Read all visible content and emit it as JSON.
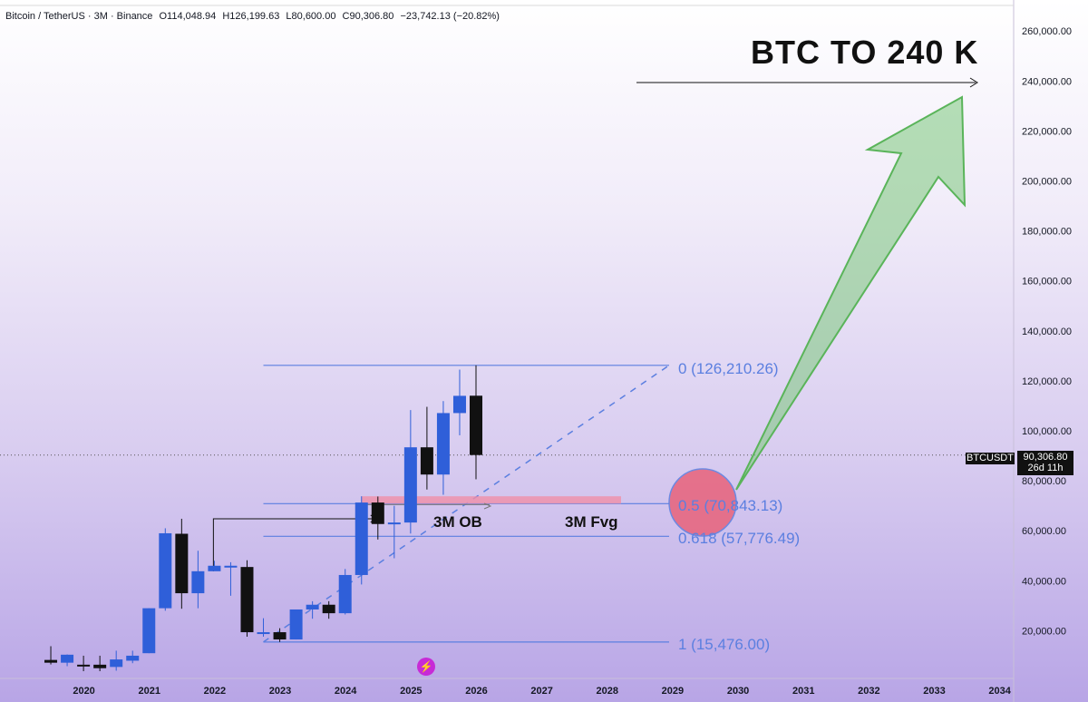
{
  "header": {
    "symbol": "Bitcoin / TetherUS · 3M · Binance",
    "open": "O114,048.94",
    "high": "H126,199.63",
    "low": "L80,600.00",
    "close": "C90,306.80",
    "change": "−23,742.13 (−20.82%)"
  },
  "headline": "BTC TO 240 K",
  "ticker_label": "BTCUSDT",
  "last_price": "90,306.80",
  "countdown": "26d 11h",
  "annotations": {
    "ob": "3M OB",
    "fvg": "3M Fvg"
  },
  "fib_levels": [
    {
      "label": "0 (126,210.26)",
      "price": 126210.26
    },
    {
      "label": "0.5 (70,843.13)",
      "price": 70843.13
    },
    {
      "label": "0.618 (57,776.49)",
      "price": 57776.49
    },
    {
      "label": "1 (15,476.00)",
      "price": 15476.0
    }
  ],
  "colors": {
    "bull": "#2f5fd9",
    "bear": "#111111",
    "fib": "#5b7fe0",
    "arrow": "#7cc97c",
    "zone": "#f08fa8",
    "circle": "#e8627a"
  },
  "logo_icon": "tradingview-bolt-icon",
  "chart_data": {
    "type": "candlestick",
    "timeframe": "3M",
    "y_axis": {
      "min": 0,
      "max": 260000,
      "ticks": [
        "20,000.00",
        "40,000.00",
        "60,000.00",
        "80,000.00",
        "100,000.00",
        "120,000.00",
        "140,000.00",
        "160,000.00",
        "180,000.00",
        "200,000.00",
        "220,000.00",
        "240,000.00",
        "260,000.00"
      ],
      "tick_values": [
        20000,
        40000,
        60000,
        80000,
        100000,
        120000,
        140000,
        160000,
        180000,
        200000,
        220000,
        240000,
        260000
      ]
    },
    "x_axis": {
      "labels": [
        "2020",
        "2021",
        "2022",
        "2023",
        "2024",
        "2025",
        "2026",
        "2027",
        "2028",
        "2029",
        "2030",
        "2031",
        "2032",
        "2033",
        "2034"
      ],
      "start_year": 2020,
      "end_year": 2034
    },
    "candles": [
      {
        "t": 2019.75,
        "o": 8300,
        "h": 13800,
        "l": 6500,
        "c": 7200
      },
      {
        "t": 2020.0,
        "o": 7200,
        "h": 10500,
        "l": 5800,
        "c": 10400
      },
      {
        "t": 2020.25,
        "o": 6400,
        "h": 10000,
        "l": 3800,
        "c": 6300
      },
      {
        "t": 2020.5,
        "o": 6400,
        "h": 10000,
        "l": 3800,
        "c": 5000
      },
      {
        "t": 2020.75,
        "o": 5500,
        "h": 12000,
        "l": 4000,
        "c": 8500
      },
      {
        "t": 2021.0,
        "o": 8000,
        "h": 12000,
        "l": 7000,
        "c": 10000
      },
      {
        "t": 2021.25,
        "o": 11000,
        "h": 29000,
        "l": 11000,
        "c": 29000
      },
      {
        "t": 2021.5,
        "o": 29000,
        "h": 61000,
        "l": 28000,
        "c": 59000
      },
      {
        "t": 2021.75,
        "o": 58800,
        "h": 64800,
        "l": 28800,
        "c": 35000
      },
      {
        "t": 2022.0,
        "o": 35000,
        "h": 52000,
        "l": 29000,
        "c": 43800
      },
      {
        "t": 2022.25,
        "o": 43800,
        "h": 48000,
        "l": 44000,
        "c": 46000
      },
      {
        "t": 2022.5,
        "o": 46000,
        "h": 47400,
        "l": 34000,
        "c": 46000
      },
      {
        "t": 2022.75,
        "o": 45500,
        "h": 48200,
        "l": 17600,
        "c": 19400
      },
      {
        "t": 2023.0,
        "o": 19400,
        "h": 25000,
        "l": 17600,
        "c": 19400
      },
      {
        "t": 2023.25,
        "o": 19400,
        "h": 21000,
        "l": 15500,
        "c": 16500
      },
      {
        "t": 2023.5,
        "o": 16500,
        "h": 28000,
        "l": 16500,
        "c": 28500
      },
      {
        "t": 2023.75,
        "o": 28500,
        "h": 31800,
        "l": 24800,
        "c": 30400
      },
      {
        "t": 2024.0,
        "o": 30400,
        "h": 31800,
        "l": 24800,
        "c": 27000
      },
      {
        "t": 2024.25,
        "o": 27000,
        "h": 44700,
        "l": 26500,
        "c": 42300
      },
      {
        "t": 2024.5,
        "o": 42300,
        "h": 73800,
        "l": 38500,
        "c": 71300
      },
      {
        "t": 2024.75,
        "o": 71300,
        "h": 73700,
        "l": 56500,
        "c": 62700
      },
      {
        "t": 2025.0,
        "o": 62700,
        "h": 70000,
        "l": 49000,
        "c": 63300
      },
      {
        "t": 2025.25,
        "o": 63300,
        "h": 108300,
        "l": 58900,
        "c": 93400
      },
      {
        "t": 2025.5,
        "o": 93400,
        "h": 109600,
        "l": 76500,
        "c": 82500
      },
      {
        "t": 2025.75,
        "o": 82500,
        "h": 111900,
        "l": 74400,
        "c": 107100
      },
      {
        "t": 2026.0,
        "o": 107100,
        "h": 124500,
        "l": 98200,
        "c": 114000
      },
      {
        "t": 2026.25,
        "o": 114048.94,
        "h": 126199.63,
        "l": 80600,
        "c": 90306.8
      }
    ]
  }
}
